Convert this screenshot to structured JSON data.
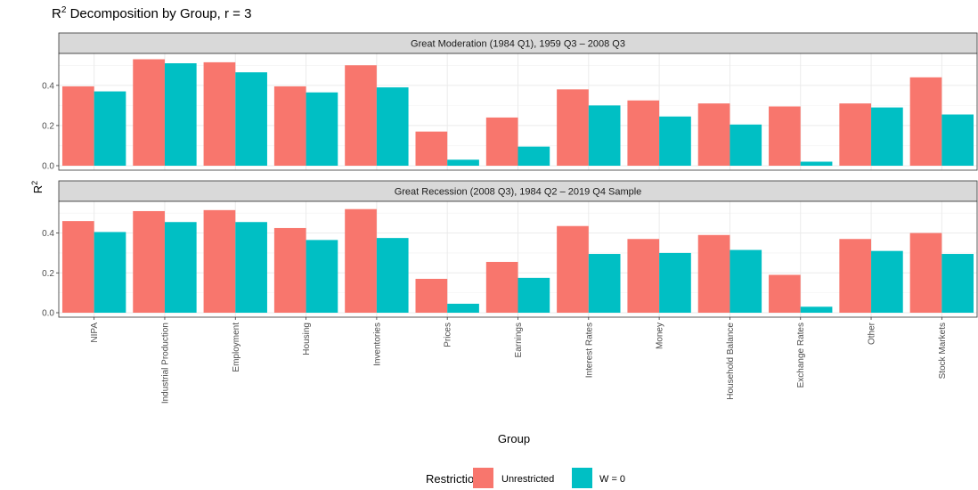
{
  "chart_data": {
    "type": "bar",
    "title": "R",
    "title_sup": "2",
    "title_rest": " Decomposition by Group, r = 3",
    "xlabel": "Group",
    "ylabel": "R",
    "ylabel_sup": "2",
    "ylim": [
      0,
      0.55
    ],
    "yticks": [
      0.0,
      0.2,
      0.4
    ],
    "ytick_labels": [
      "0.0",
      "0.2",
      "0.4"
    ],
    "grid": true,
    "legend": {
      "title": "Restriction",
      "placement": "bottom"
    },
    "categories": [
      "NIPA",
      "Industrial Production",
      "Employment",
      "Housing",
      "Inventories",
      "Prices",
      "Earnings",
      "Interest Rates",
      "Money",
      "Household Balance",
      "Exchange Rates",
      "Other",
      "Stock Markets"
    ],
    "series_meta": [
      {
        "name": "Unrestricted",
        "color": "#F8766D"
      },
      {
        "name": "W = 0",
        "color": "#00BFC4"
      }
    ],
    "panels": [
      {
        "label": "Great Moderation (1984 Q1), 1959 Q3 – 2008 Q3",
        "series": [
          {
            "name": "Unrestricted",
            "values": [
              0.395,
              0.53,
              0.515,
              0.395,
              0.5,
              0.17,
              0.24,
              0.38,
              0.325,
              0.31,
              0.295,
              0.31,
              0.44
            ]
          },
          {
            "name": "W = 0",
            "values": [
              0.37,
              0.51,
              0.465,
              0.365,
              0.39,
              0.03,
              0.095,
              0.3,
              0.245,
              0.205,
              0.02,
              0.29,
              0.255
            ]
          }
        ]
      },
      {
        "label": "Great Recession (2008 Q3), 1984 Q2 – 2019 Q4 Sample",
        "series": [
          {
            "name": "Unrestricted",
            "values": [
              0.46,
              0.51,
              0.515,
              0.425,
              0.52,
              0.17,
              0.255,
              0.435,
              0.37,
              0.39,
              0.19,
              0.37,
              0.4
            ]
          },
          {
            "name": "W = 0",
            "values": [
              0.405,
              0.455,
              0.455,
              0.365,
              0.375,
              0.045,
              0.175,
              0.295,
              0.3,
              0.315,
              0.03,
              0.31,
              0.295
            ]
          }
        ]
      }
    ]
  }
}
